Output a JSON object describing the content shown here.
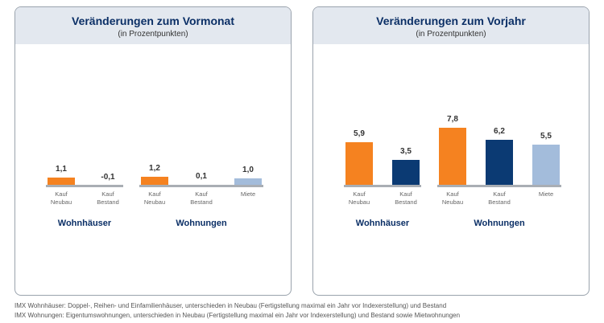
{
  "chart_data": [
    {
      "type": "bar",
      "title": "Veränderungen zum Vormonat",
      "subtitle": "(in Prozentpunkten)",
      "groups": [
        {
          "name": "Wohnhäuser",
          "categories": [
            "Kauf\nNeubau",
            "Kauf\nBestand"
          ],
          "values": [
            1.1,
            -0.1
          ],
          "value_labels": [
            "1,1",
            "-0,1"
          ],
          "colors": [
            "#f58220",
            "#0b3a73"
          ]
        },
        {
          "name": "Wohnungen",
          "categories": [
            "Kauf\nNeubau",
            "Kauf\nBestand",
            "Miete"
          ],
          "values": [
            1.2,
            0.1,
            1.0
          ],
          "value_labels": [
            "1,2",
            "0,1",
            "1,0"
          ],
          "colors": [
            "#f58220",
            "#0b3a73",
            "#a3bcdb"
          ]
        }
      ]
    },
    {
      "type": "bar",
      "title": "Veränderungen zum Vorjahr",
      "subtitle": "(in Prozentpunkten)",
      "groups": [
        {
          "name": "Wohnhäuser",
          "categories": [
            "Kauf\nNeubau",
            "Kauf\nBestand"
          ],
          "values": [
            5.9,
            3.5
          ],
          "value_labels": [
            "5,9",
            "3,5"
          ],
          "colors": [
            "#f58220",
            "#0b3a73"
          ]
        },
        {
          "name": "Wohnungen",
          "categories": [
            "Kauf\nNeubau",
            "Kauf\nBestand",
            "Miete"
          ],
          "values": [
            7.8,
            6.2,
            5.5
          ],
          "value_labels": [
            "7,8",
            "6,2",
            "5,5"
          ],
          "colors": [
            "#f58220",
            "#0b3a73",
            "#a3bcdb"
          ]
        }
      ]
    }
  ],
  "notes": [
    "IMX Wohnhäuser: Doppel-, Reihen- und Einfamilienhäuser, unterschieden in Neubau (Fertigstellung maximal ein Jahr vor Indexerstellung) und Bestand",
    "IMX Wohnungen: Eigentumswohnungen, unterschieden in Neubau (Fertigstellung maximal ein Jahr vor Indexerstellung) und Bestand sowie Mietwohnungen"
  ]
}
